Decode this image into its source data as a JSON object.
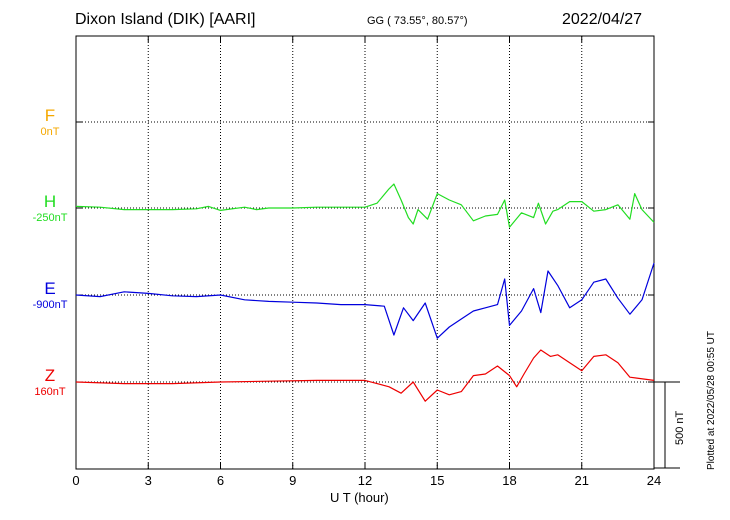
{
  "header": {
    "station": "Dixon Island (DIK)  [AARI]",
    "coords": "GG ( 73.55°,  80.57°)",
    "date": "2022/04/27"
  },
  "footer_note": "Plotted at 2022/05/28 00:55 UT",
  "scale_label": "500 nT",
  "chart_data": {
    "type": "line",
    "xlabel": "U T (hour)",
    "xlim": [
      0,
      24
    ],
    "x_ticks": [
      "0",
      "3",
      "6",
      "9",
      "12",
      "15",
      "18",
      "21",
      "24"
    ],
    "grid": true,
    "scale_bar_nT": 500,
    "series": [
      {
        "name": "F",
        "baseline_label": "0nT",
        "color": "#F5A800",
        "points": []
      },
      {
        "name": "H",
        "baseline_label": "-250nT",
        "color": "#22DD22",
        "points": [
          [
            0,
            10
          ],
          [
            1,
            5
          ],
          [
            2,
            -10
          ],
          [
            3,
            -10
          ],
          [
            4,
            -10
          ],
          [
            5,
            -5
          ],
          [
            5.5,
            10
          ],
          [
            6,
            -15
          ],
          [
            7,
            5
          ],
          [
            7.5,
            -10
          ],
          [
            8,
            0
          ],
          [
            9,
            0
          ],
          [
            10,
            5
          ],
          [
            11,
            5
          ],
          [
            12,
            5
          ],
          [
            12.5,
            30
          ],
          [
            13,
            120
          ],
          [
            13.2,
            150
          ],
          [
            13.5,
            50
          ],
          [
            13.8,
            -60
          ],
          [
            14,
            -100
          ],
          [
            14.2,
            -10
          ],
          [
            14.6,
            -70
          ],
          [
            15,
            90
          ],
          [
            15.5,
            50
          ],
          [
            16,
            20
          ],
          [
            16.5,
            -80
          ],
          [
            17,
            -50
          ],
          [
            17.5,
            -40
          ],
          [
            17.8,
            50
          ],
          [
            18,
            -120
          ],
          [
            18.5,
            -30
          ],
          [
            19,
            -60
          ],
          [
            19.2,
            30
          ],
          [
            19.5,
            -100
          ],
          [
            19.8,
            -20
          ],
          [
            20,
            -10
          ],
          [
            20.5,
            40
          ],
          [
            21,
            40
          ],
          [
            21.5,
            -20
          ],
          [
            22,
            -10
          ],
          [
            22.5,
            20
          ],
          [
            23,
            -70
          ],
          [
            23.2,
            90
          ],
          [
            23.5,
            -10
          ],
          [
            24,
            -90
          ]
        ]
      },
      {
        "name": "E",
        "baseline_label": "-900nT",
        "color": "#0000DD",
        "points": [
          [
            0,
            0
          ],
          [
            1,
            -10
          ],
          [
            2,
            20
          ],
          [
            3,
            10
          ],
          [
            4,
            -5
          ],
          [
            5,
            -10
          ],
          [
            6,
            0
          ],
          [
            7,
            -30
          ],
          [
            8,
            -40
          ],
          [
            9,
            -45
          ],
          [
            10,
            -50
          ],
          [
            11,
            -60
          ],
          [
            12,
            -60
          ],
          [
            12.8,
            -70
          ],
          [
            13.2,
            -250
          ],
          [
            13.6,
            -80
          ],
          [
            14,
            -160
          ],
          [
            14.5,
            -50
          ],
          [
            15,
            -270
          ],
          [
            15.5,
            -200
          ],
          [
            16,
            -150
          ],
          [
            16.5,
            -100
          ],
          [
            17,
            -80
          ],
          [
            17.5,
            -60
          ],
          [
            17.8,
            100
          ],
          [
            18,
            -190
          ],
          [
            18.5,
            -100
          ],
          [
            19,
            40
          ],
          [
            19.3,
            -110
          ],
          [
            19.6,
            150
          ],
          [
            20,
            60
          ],
          [
            20.5,
            -80
          ],
          [
            21,
            -30
          ],
          [
            21.5,
            80
          ],
          [
            22,
            100
          ],
          [
            22.5,
            -20
          ],
          [
            23,
            -120
          ],
          [
            23.5,
            -30
          ],
          [
            24,
            200
          ]
        ]
      },
      {
        "name": "Z",
        "baseline_label": "160nT",
        "color": "#EE0000",
        "points": [
          [
            0,
            0
          ],
          [
            2,
            -10
          ],
          [
            4,
            -10
          ],
          [
            6,
            0
          ],
          [
            8,
            5
          ],
          [
            10,
            10
          ],
          [
            12,
            10
          ],
          [
            13,
            -30
          ],
          [
            13.5,
            -70
          ],
          [
            14,
            0
          ],
          [
            14.5,
            -120
          ],
          [
            15,
            -50
          ],
          [
            15.5,
            -80
          ],
          [
            16,
            -60
          ],
          [
            16.5,
            40
          ],
          [
            17,
            50
          ],
          [
            17.5,
            100
          ],
          [
            18,
            40
          ],
          [
            18.3,
            -30
          ],
          [
            18.6,
            50
          ],
          [
            19,
            150
          ],
          [
            19.3,
            200
          ],
          [
            19.7,
            160
          ],
          [
            20,
            170
          ],
          [
            20.5,
            120
          ],
          [
            21,
            70
          ],
          [
            21.5,
            160
          ],
          [
            22,
            170
          ],
          [
            22.5,
            120
          ],
          [
            23,
            30
          ],
          [
            24,
            10
          ]
        ]
      }
    ]
  }
}
